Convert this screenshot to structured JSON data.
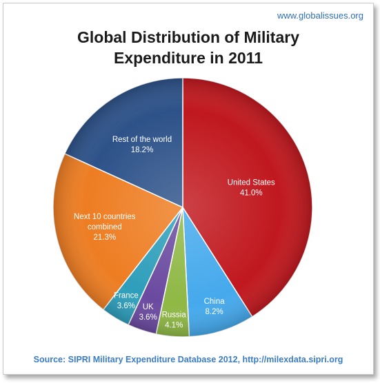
{
  "site_url": "www.globalissues.org",
  "title_lines": [
    "Global Distribution of Military",
    "Expenditure in 2011"
  ],
  "source": "Source: SIPRI Military Expenditure Database 2012, http://milexdata.sipri.org",
  "chart_data": {
    "type": "pie",
    "title": "Global Distribution of Military Expenditure in 2011",
    "slices": [
      {
        "label": "United States",
        "value": 41.0,
        "display": "41.0%",
        "color": "#c0181e"
      },
      {
        "label": "China",
        "value": 8.2,
        "display": "8.2%",
        "color": "#45a9ec"
      },
      {
        "label": "Russia",
        "value": 4.1,
        "display": "4.1%",
        "color": "#8fb845"
      },
      {
        "label": "UK",
        "value": 3.6,
        "display": "3.6%",
        "color": "#6a4aa0"
      },
      {
        "label": "France",
        "value": 3.6,
        "display": "3.6%",
        "color": "#2e9ebb"
      },
      {
        "label": "Next 10 countries combined",
        "value": 21.3,
        "display": "21.3%",
        "color": "#ee7d22"
      },
      {
        "label": "Rest of the world",
        "value": 18.2,
        "display": "18.2%",
        "color": "#2d5289"
      }
    ]
  }
}
